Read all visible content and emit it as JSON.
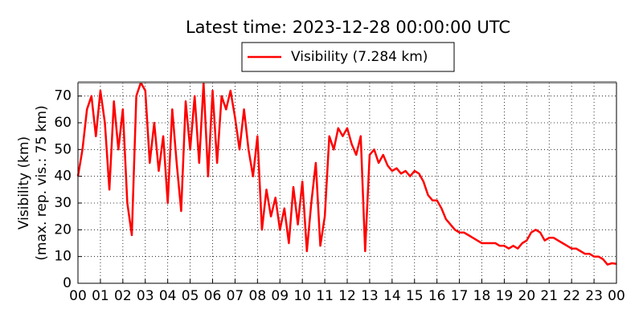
{
  "chart_data": {
    "type": "line",
    "title": "Latest time: 2023-12-28 00:00:00 UTC",
    "ylabel": [
      "Visibility (km)",
      "(max. rep. vis.: 75 km)"
    ],
    "xlim": [
      0,
      24
    ],
    "ylim": [
      0,
      75
    ],
    "yticks": [
      0,
      10,
      20,
      30,
      40,
      50,
      60,
      70
    ],
    "xticks": [
      {
        "value": 0,
        "label": "00"
      },
      {
        "value": 1,
        "label": "01"
      },
      {
        "value": 2,
        "label": "02"
      },
      {
        "value": 3,
        "label": "03"
      },
      {
        "value": 4,
        "label": "04"
      },
      {
        "value": 5,
        "label": "05"
      },
      {
        "value": 6,
        "label": "06"
      },
      {
        "value": 7,
        "label": "07"
      },
      {
        "value": 8,
        "label": "08"
      },
      {
        "value": 9,
        "label": "09"
      },
      {
        "value": 10,
        "label": "10"
      },
      {
        "value": 11,
        "label": "11"
      },
      {
        "value": 12,
        "label": "12"
      },
      {
        "value": 13,
        "label": "13"
      },
      {
        "value": 14,
        "label": "14"
      },
      {
        "value": 15,
        "label": "15"
      },
      {
        "value": 16,
        "label": "16"
      },
      {
        "value": 17,
        "label": "17"
      },
      {
        "value": 18,
        "label": "18"
      },
      {
        "value": 19,
        "label": "19"
      },
      {
        "value": 20,
        "label": "20"
      },
      {
        "value": 21,
        "label": "21"
      },
      {
        "value": 22,
        "label": "22"
      },
      {
        "value": 23,
        "label": "23"
      },
      {
        "value": 24,
        "label": "00"
      }
    ],
    "grid": true,
    "legend": "top",
    "x": [
      0,
      0.2,
      0.4,
      0.6,
      0.8,
      1,
      1.2,
      1.4,
      1.6,
      1.8,
      2,
      2.2,
      2.4,
      2.6,
      2.8,
      3,
      3.2,
      3.4,
      3.6,
      3.8,
      4,
      4.2,
      4.4,
      4.6,
      4.8,
      5,
      5.2,
      5.4,
      5.6,
      5.8,
      6,
      6.2,
      6.4,
      6.6,
      6.8,
      7,
      7.2,
      7.4,
      7.6,
      7.8,
      8,
      8.2,
      8.4,
      8.6,
      8.8,
      9,
      9.2,
      9.4,
      9.6,
      9.8,
      10,
      10.2,
      10.4,
      10.6,
      10.8,
      11,
      11.2,
      11.4,
      11.6,
      11.8,
      12,
      12.2,
      12.4,
      12.6,
      12.8,
      13,
      13.2,
      13.4,
      13.6,
      13.8,
      14,
      14.2,
      14.4,
      14.6,
      14.8,
      15,
      15.2,
      15.4,
      15.6,
      15.8,
      16,
      16.2,
      16.4,
      16.6,
      16.8,
      17,
      17.2,
      17.4,
      17.6,
      17.8,
      18,
      18.2,
      18.4,
      18.6,
      18.8,
      19,
      19.2,
      19.4,
      19.6,
      19.8,
      20,
      20.2,
      20.4,
      20.6,
      20.8,
      21,
      21.2,
      21.4,
      21.6,
      21.8,
      22,
      22.2,
      22.4,
      22.6,
      22.8,
      23,
      23.2,
      23.4,
      23.6,
      23.8,
      24
    ],
    "series": [
      {
        "name": "Visibility (7.284 km)",
        "color": "#ff0000",
        "values": [
          40,
          50,
          65,
          70,
          55,
          72,
          60,
          35,
          68,
          50,
          65,
          30,
          18,
          70,
          75,
          72,
          45,
          60,
          42,
          55,
          30,
          65,
          45,
          27,
          68,
          50,
          70,
          45,
          75,
          40,
          72,
          45,
          70,
          65,
          72,
          62,
          50,
          65,
          50,
          40,
          55,
          20,
          35,
          25,
          32,
          20,
          28,
          15,
          36,
          22,
          38,
          12,
          30,
          45,
          14,
          25,
          55,
          50,
          58,
          55,
          58,
          52,
          48,
          55,
          12,
          48,
          50,
          45,
          48,
          44,
          42,
          43,
          41,
          42,
          40,
          42,
          41,
          38,
          33,
          31,
          31,
          28,
          24,
          22,
          20,
          19,
          19,
          18,
          17,
          16,
          15,
          15,
          15,
          15,
          14,
          14,
          13,
          14,
          13,
          15,
          16,
          19,
          20,
          19,
          16,
          17,
          17,
          16,
          15,
          14,
          13,
          13,
          12,
          11,
          11,
          10,
          10,
          9,
          7,
          7.5,
          7.284
        ]
      }
    ]
  }
}
